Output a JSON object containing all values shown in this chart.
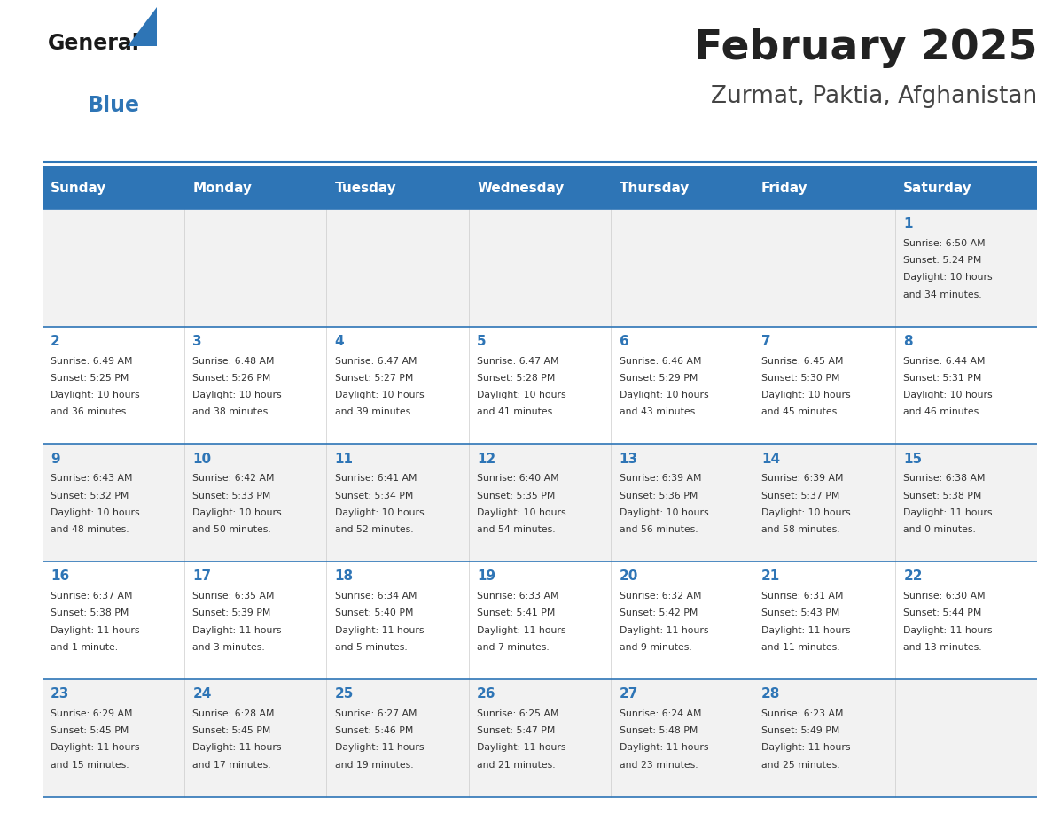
{
  "title": "February 2025",
  "subtitle": "Zurmat, Paktia, Afghanistan",
  "header_bg": "#2E75B6",
  "header_text_color": "#FFFFFF",
  "cell_bg_light": "#F2F2F2",
  "cell_bg_white": "#FFFFFF",
  "day_number_color": "#2E75B6",
  "text_color": "#333333",
  "line_color": "#2E75B6",
  "days_of_week": [
    "Sunday",
    "Monday",
    "Tuesday",
    "Wednesday",
    "Thursday",
    "Friday",
    "Saturday"
  ],
  "weeks": [
    [
      {
        "day": null,
        "sunrise": null,
        "sunset": null,
        "daylight": null
      },
      {
        "day": null,
        "sunrise": null,
        "sunset": null,
        "daylight": null
      },
      {
        "day": null,
        "sunrise": null,
        "sunset": null,
        "daylight": null
      },
      {
        "day": null,
        "sunrise": null,
        "sunset": null,
        "daylight": null
      },
      {
        "day": null,
        "sunrise": null,
        "sunset": null,
        "daylight": null
      },
      {
        "day": null,
        "sunrise": null,
        "sunset": null,
        "daylight": null
      },
      {
        "day": 1,
        "sunrise": "6:50 AM",
        "sunset": "5:24 PM",
        "daylight": "10 hours\nand 34 minutes."
      }
    ],
    [
      {
        "day": 2,
        "sunrise": "6:49 AM",
        "sunset": "5:25 PM",
        "daylight": "10 hours\nand 36 minutes."
      },
      {
        "day": 3,
        "sunrise": "6:48 AM",
        "sunset": "5:26 PM",
        "daylight": "10 hours\nand 38 minutes."
      },
      {
        "day": 4,
        "sunrise": "6:47 AM",
        "sunset": "5:27 PM",
        "daylight": "10 hours\nand 39 minutes."
      },
      {
        "day": 5,
        "sunrise": "6:47 AM",
        "sunset": "5:28 PM",
        "daylight": "10 hours\nand 41 minutes."
      },
      {
        "day": 6,
        "sunrise": "6:46 AM",
        "sunset": "5:29 PM",
        "daylight": "10 hours\nand 43 minutes."
      },
      {
        "day": 7,
        "sunrise": "6:45 AM",
        "sunset": "5:30 PM",
        "daylight": "10 hours\nand 45 minutes."
      },
      {
        "day": 8,
        "sunrise": "6:44 AM",
        "sunset": "5:31 PM",
        "daylight": "10 hours\nand 46 minutes."
      }
    ],
    [
      {
        "day": 9,
        "sunrise": "6:43 AM",
        "sunset": "5:32 PM",
        "daylight": "10 hours\nand 48 minutes."
      },
      {
        "day": 10,
        "sunrise": "6:42 AM",
        "sunset": "5:33 PM",
        "daylight": "10 hours\nand 50 minutes."
      },
      {
        "day": 11,
        "sunrise": "6:41 AM",
        "sunset": "5:34 PM",
        "daylight": "10 hours\nand 52 minutes."
      },
      {
        "day": 12,
        "sunrise": "6:40 AM",
        "sunset": "5:35 PM",
        "daylight": "10 hours\nand 54 minutes."
      },
      {
        "day": 13,
        "sunrise": "6:39 AM",
        "sunset": "5:36 PM",
        "daylight": "10 hours\nand 56 minutes."
      },
      {
        "day": 14,
        "sunrise": "6:39 AM",
        "sunset": "5:37 PM",
        "daylight": "10 hours\nand 58 minutes."
      },
      {
        "day": 15,
        "sunrise": "6:38 AM",
        "sunset": "5:38 PM",
        "daylight": "11 hours\nand 0 minutes."
      }
    ],
    [
      {
        "day": 16,
        "sunrise": "6:37 AM",
        "sunset": "5:38 PM",
        "daylight": "11 hours\nand 1 minute."
      },
      {
        "day": 17,
        "sunrise": "6:35 AM",
        "sunset": "5:39 PM",
        "daylight": "11 hours\nand 3 minutes."
      },
      {
        "day": 18,
        "sunrise": "6:34 AM",
        "sunset": "5:40 PM",
        "daylight": "11 hours\nand 5 minutes."
      },
      {
        "day": 19,
        "sunrise": "6:33 AM",
        "sunset": "5:41 PM",
        "daylight": "11 hours\nand 7 minutes."
      },
      {
        "day": 20,
        "sunrise": "6:32 AM",
        "sunset": "5:42 PM",
        "daylight": "11 hours\nand 9 minutes."
      },
      {
        "day": 21,
        "sunrise": "6:31 AM",
        "sunset": "5:43 PM",
        "daylight": "11 hours\nand 11 minutes."
      },
      {
        "day": 22,
        "sunrise": "6:30 AM",
        "sunset": "5:44 PM",
        "daylight": "11 hours\nand 13 minutes."
      }
    ],
    [
      {
        "day": 23,
        "sunrise": "6:29 AM",
        "sunset": "5:45 PM",
        "daylight": "11 hours\nand 15 minutes."
      },
      {
        "day": 24,
        "sunrise": "6:28 AM",
        "sunset": "5:45 PM",
        "daylight": "11 hours\nand 17 minutes."
      },
      {
        "day": 25,
        "sunrise": "6:27 AM",
        "sunset": "5:46 PM",
        "daylight": "11 hours\nand 19 minutes."
      },
      {
        "day": 26,
        "sunrise": "6:25 AM",
        "sunset": "5:47 PM",
        "daylight": "11 hours\nand 21 minutes."
      },
      {
        "day": 27,
        "sunrise": "6:24 AM",
        "sunset": "5:48 PM",
        "daylight": "11 hours\nand 23 minutes."
      },
      {
        "day": 28,
        "sunrise": "6:23 AM",
        "sunset": "5:49 PM",
        "daylight": "11 hours\nand 25 minutes."
      },
      {
        "day": null,
        "sunrise": null,
        "sunset": null,
        "daylight": null
      }
    ]
  ]
}
